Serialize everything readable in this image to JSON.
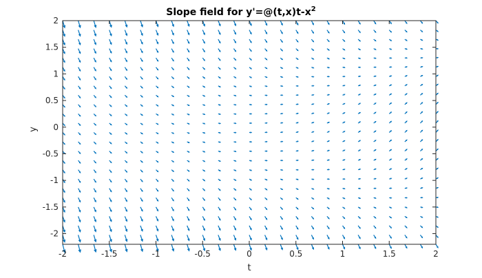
{
  "chart_data": {
    "type": "quiver",
    "title": "Slope field for y'=@(t,x)t-x",
    "title_superscript": "2",
    "xlabel": "t",
    "ylabel": "y",
    "xlim": [
      -2,
      2
    ],
    "ylim": [
      -2.2,
      2
    ],
    "xticks": [
      -2,
      -1.5,
      -1,
      -0.5,
      0,
      0.5,
      1,
      1.5,
      2
    ],
    "xtick_labels": [
      "-2",
      "-1.5",
      "-1",
      "-0.5",
      "0",
      "0.5",
      "1",
      "1.5",
      "2"
    ],
    "yticks": [
      2,
      1.5,
      1,
      0.5,
      0,
      -0.5,
      -1,
      -1.5,
      -2
    ],
    "ytick_labels": [
      "2",
      "1.5",
      "1",
      "0.5",
      "0",
      "-0.5",
      "-1",
      "-1.5",
      "-2"
    ],
    "grid": false,
    "box": true,
    "arrow_color": "#0072BD",
    "t_points": [
      -2.0,
      -1.8333,
      -1.6667,
      -1.5,
      -1.3333,
      -1.1667,
      -1.0,
      -0.8333,
      -0.6667,
      -0.5,
      -0.3333,
      -0.1667,
      0.0,
      0.1667,
      0.3333,
      0.5,
      0.6667,
      0.8333,
      1.0,
      1.1667,
      1.3333,
      1.5,
      1.6667,
      1.8333,
      2.0
    ],
    "y_points": [
      -2.2,
      -2.025,
      -1.85,
      -1.675,
      -1.5,
      -1.325,
      -1.15,
      -0.975,
      -0.8,
      -0.625,
      -0.45,
      -0.275,
      -0.1,
      0.075,
      0.25,
      0.425,
      0.6,
      0.775,
      0.95,
      1.125,
      1.3,
      1.475,
      1.65,
      1.825,
      2.0
    ]
  }
}
